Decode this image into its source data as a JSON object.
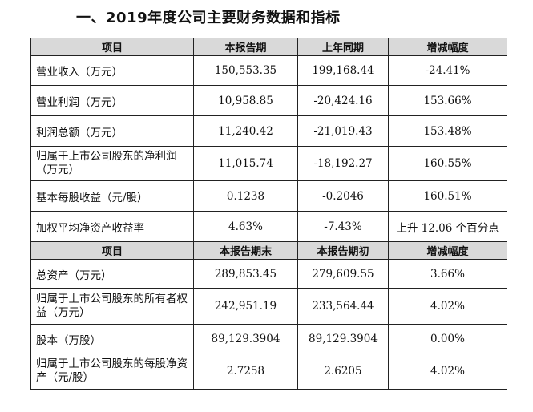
{
  "heading": "一、2019年度公司主要财务数据和指标",
  "section1": {
    "headers": [
      "项目",
      "本报告期",
      "上年同期",
      "增减幅度"
    ],
    "rows": [
      [
        "营业收入（万元）",
        "150,553.35",
        "199,168.44",
        "-24.41%"
      ],
      [
        "营业利润（万元）",
        "10,958.85",
        "-20,424.16",
        "153.66%"
      ],
      [
        "利润总额（万元）",
        "11,240.42",
        "-21,019.43",
        "153.48%"
      ],
      [
        "归属于上市公司股东的净利润（万元）",
        "11,015.74",
        "-18,192.27",
        "160.55%"
      ],
      [
        "基本每股收益（元/股）",
        "0.1238",
        "-0.2046",
        "160.51%"
      ],
      [
        "加权平均净资产收益率",
        "4.63%",
        "-7.43%",
        "上升 12.06 个百分点"
      ]
    ]
  },
  "section2": {
    "headers": [
      "项目",
      "本报告期末",
      "本报告期初",
      "增减幅度"
    ],
    "rows": [
      [
        "总资产（万元）",
        "289,853.45",
        "279,609.55",
        "3.66%"
      ],
      [
        "归属于上市公司股东的所有者权益（万元）",
        "242,951.19",
        "233,564.44",
        "4.02%"
      ],
      [
        "股本（万股）",
        "89,129.3904",
        "89,129.3904",
        "0.00%"
      ],
      [
        "归属于上市公司股东的每股净资产（元/股）",
        "2.7258",
        "2.6205",
        "4.02%"
      ]
    ]
  }
}
